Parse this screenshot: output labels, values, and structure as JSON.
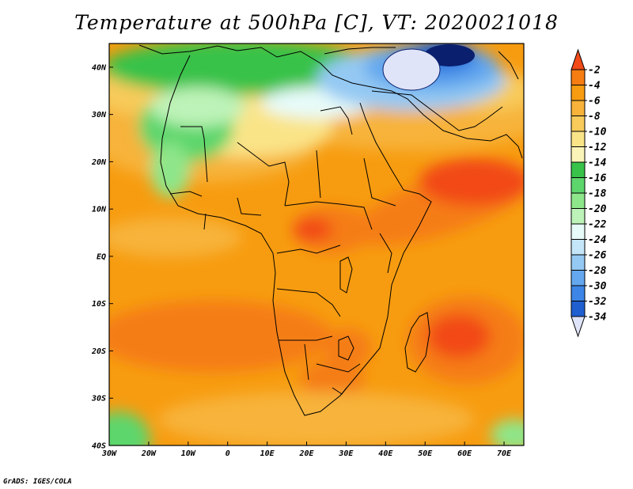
{
  "title": "Temperature at 500hPa [C], VT: 2020021018",
  "credit": "GrADS: IGES/COLA",
  "map": {
    "lon_range": [
      -30,
      75
    ],
    "lat_range": [
      -40,
      45
    ],
    "x_ticks": [
      {
        "lon": -30,
        "label": "30W"
      },
      {
        "lon": -20,
        "label": "20W"
      },
      {
        "lon": -10,
        "label": "10W"
      },
      {
        "lon": 0,
        "label": "0"
      },
      {
        "lon": 10,
        "label": "10E"
      },
      {
        "lon": 20,
        "label": "20E"
      },
      {
        "lon": 30,
        "label": "30E"
      },
      {
        "lon": 40,
        "label": "40E"
      },
      {
        "lon": 50,
        "label": "50E"
      },
      {
        "lon": 60,
        "label": "60E"
      },
      {
        "lon": 70,
        "label": "70E"
      }
    ],
    "y_ticks": [
      {
        "lat": 40,
        "label": "40N"
      },
      {
        "lat": 30,
        "label": "30N"
      },
      {
        "lat": 20,
        "label": "20N"
      },
      {
        "lat": 10,
        "label": "10N"
      },
      {
        "lat": 0,
        "label": "EQ"
      },
      {
        "lat": -10,
        "label": "10S"
      },
      {
        "lat": -20,
        "label": "20S"
      },
      {
        "lat": -30,
        "label": "30S"
      },
      {
        "lat": -40,
        "label": "40S"
      }
    ]
  },
  "colorbar": {
    "labels": [
      "-2",
      "-4",
      "-6",
      "-8",
      "-10",
      "-12",
      "-14",
      "-16",
      "-18",
      "-20",
      "-22",
      "-24",
      "-26",
      "-28",
      "-30",
      "-32",
      "-34"
    ],
    "colors": [
      "#f24a18",
      "#f57d12",
      "#f79c10",
      "#f7b33a",
      "#f8cb5a",
      "#fae488",
      "#fbf4b8",
      "#38c24a",
      "#5dd66c",
      "#8ee68a",
      "#bdf3b8",
      "#e7fbf9",
      "#c4e6f8",
      "#94c9f3",
      "#64a7ee",
      "#3d85e6",
      "#1f5fcf",
      "#0f3c9e",
      "#0a1f6e",
      "#e0e4f8"
    ]
  }
}
